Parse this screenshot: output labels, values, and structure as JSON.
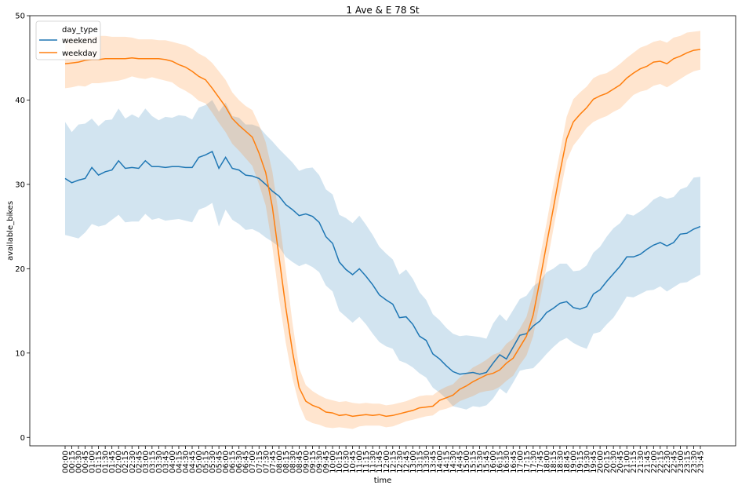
{
  "chart_data": {
    "type": "line",
    "title": "1 Ave & E 78 St",
    "xlabel": "time",
    "ylabel": "available_bikes",
    "ylim": [
      -1,
      50
    ],
    "yticks": [
      0,
      10,
      20,
      30,
      40,
      50
    ],
    "grid": false,
    "legend": {
      "placement": "top-left",
      "title": "day_type"
    },
    "x": [
      "00:00",
      "00:15",
      "00:30",
      "00:45",
      "01:00",
      "01:15",
      "01:30",
      "01:45",
      "02:00",
      "02:15",
      "02:30",
      "02:45",
      "03:00",
      "03:15",
      "03:30",
      "03:45",
      "04:00",
      "04:15",
      "04:30",
      "04:45",
      "05:00",
      "05:15",
      "05:30",
      "05:45",
      "06:00",
      "06:15",
      "06:30",
      "06:45",
      "07:00",
      "07:15",
      "07:30",
      "07:45",
      "08:00",
      "08:15",
      "08:30",
      "08:45",
      "09:00",
      "09:15",
      "09:30",
      "09:45",
      "10:00",
      "10:15",
      "10:30",
      "10:45",
      "11:00",
      "11:15",
      "11:30",
      "11:45",
      "12:00",
      "12:15",
      "12:30",
      "12:45",
      "13:00",
      "13:15",
      "13:30",
      "13:45",
      "14:00",
      "14:15",
      "14:30",
      "14:45",
      "15:00",
      "15:15",
      "15:30",
      "15:45",
      "16:00",
      "16:15",
      "16:30",
      "16:45",
      "17:00",
      "17:15",
      "17:30",
      "17:45",
      "18:00",
      "18:15",
      "18:30",
      "18:45",
      "19:00",
      "19:15",
      "19:30",
      "19:45",
      "20:00",
      "20:15",
      "20:30",
      "20:45",
      "21:00",
      "21:15",
      "21:30",
      "21:45",
      "22:00",
      "22:15",
      "22:30",
      "22:45",
      "23:00",
      "23:15",
      "23:30",
      "23:45"
    ],
    "series": [
      {
        "name": "weekend",
        "color": "#1f77b4",
        "band_color": "#1f77b4",
        "values": [
          30.7,
          30.2,
          30.5,
          30.7,
          32.0,
          31.1,
          31.5,
          31.7,
          32.8,
          31.9,
          32.0,
          31.9,
          32.8,
          32.1,
          32.1,
          32.0,
          32.1,
          32.1,
          32.0,
          32.0,
          33.2,
          33.5,
          33.9,
          31.9,
          33.2,
          31.9,
          31.7,
          31.1,
          31.0,
          30.7,
          30.0,
          29.2,
          28.6,
          27.6,
          27.0,
          26.3,
          26.5,
          26.2,
          25.5,
          23.8,
          23.0,
          20.8,
          19.9,
          19.3,
          20.0,
          19.1,
          18.1,
          16.9,
          16.3,
          15.8,
          14.2,
          14.3,
          13.4,
          12.0,
          11.5,
          9.9,
          9.3,
          8.5,
          7.8,
          7.5,
          7.6,
          7.7,
          7.5,
          7.7,
          8.8,
          9.8,
          9.3,
          10.7,
          12.1,
          12.3,
          13.2,
          13.8,
          14.8,
          15.3,
          15.9,
          16.1,
          15.4,
          15.2,
          15.5,
          17.0,
          17.5,
          18.5,
          19.4,
          20.3,
          21.4,
          21.4,
          21.7,
          22.3,
          22.8,
          23.1,
          22.7,
          23.1,
          24.1,
          24.2,
          24.7,
          25.0
        ],
        "lower": [
          24.0,
          23.8,
          23.6,
          24.3,
          25.3,
          25.0,
          25.2,
          25.8,
          26.4,
          25.5,
          25.6,
          25.6,
          26.5,
          25.8,
          26.0,
          25.7,
          25.8,
          25.9,
          25.7,
          25.5,
          27.0,
          27.3,
          27.8,
          25.0,
          27.0,
          25.8,
          25.3,
          24.6,
          24.7,
          24.3,
          23.7,
          23.2,
          22.6,
          21.4,
          20.8,
          20.3,
          20.6,
          20.2,
          19.6,
          18.0,
          17.3,
          15.0,
          14.3,
          13.6,
          14.3,
          13.4,
          12.3,
          11.3,
          10.8,
          10.5,
          9.1,
          8.8,
          8.3,
          7.6,
          7.1,
          5.9,
          5.3,
          4.6,
          3.7,
          3.5,
          3.3,
          3.7,
          3.6,
          3.8,
          4.6,
          5.8,
          5.2,
          6.5,
          7.9,
          8.1,
          8.2,
          9.0,
          9.9,
          10.7,
          11.4,
          11.8,
          11.2,
          10.8,
          10.5,
          12.3,
          12.5,
          13.4,
          14.2,
          15.4,
          16.7,
          16.6,
          17.0,
          17.4,
          17.5,
          17.9,
          17.3,
          17.8,
          18.3,
          18.4,
          18.9,
          19.3
        ],
        "upper": [
          37.4,
          36.2,
          37.1,
          37.2,
          37.8,
          36.9,
          37.6,
          37.7,
          39.0,
          37.8,
          38.3,
          37.9,
          39.0,
          38.1,
          37.6,
          38.0,
          37.9,
          38.2,
          38.1,
          37.7,
          39.1,
          39.4,
          40.0,
          38.6,
          39.7,
          38.1,
          37.9,
          37.1,
          37.1,
          36.8,
          35.9,
          35.1,
          34.2,
          33.4,
          32.6,
          31.6,
          31.9,
          32.0,
          31.1,
          29.4,
          28.8,
          26.4,
          26.0,
          25.4,
          26.3,
          25.2,
          24.0,
          22.6,
          21.8,
          21.1,
          19.3,
          19.9,
          18.8,
          17.2,
          16.3,
          14.6,
          13.9,
          13.0,
          12.3,
          12.0,
          12.1,
          12.0,
          11.9,
          11.7,
          13.5,
          14.6,
          13.8,
          15.1,
          16.4,
          16.8,
          17.9,
          18.5,
          19.6,
          20.0,
          20.6,
          20.6,
          19.7,
          19.8,
          20.4,
          21.9,
          22.6,
          23.8,
          24.8,
          25.4,
          26.5,
          26.3,
          26.8,
          27.4,
          28.2,
          28.6,
          28.3,
          28.5,
          29.4,
          29.7,
          30.8,
          30.9
        ]
      },
      {
        "name": "weekday",
        "color": "#ff7f0e",
        "band_color": "#ff7f0e",
        "values": [
          44.3,
          44.4,
          44.5,
          44.7,
          44.8,
          44.8,
          44.9,
          44.9,
          44.9,
          44.9,
          45.0,
          44.9,
          44.9,
          44.9,
          44.9,
          44.8,
          44.6,
          44.2,
          43.9,
          43.4,
          42.8,
          42.4,
          41.4,
          40.3,
          39.2,
          37.8,
          37.0,
          36.3,
          35.6,
          33.7,
          31.4,
          27.3,
          21.4,
          15.4,
          10.2,
          5.9,
          4.3,
          3.8,
          3.5,
          3.0,
          2.9,
          2.6,
          2.7,
          2.5,
          2.6,
          2.7,
          2.6,
          2.7,
          2.5,
          2.6,
          2.8,
          3.0,
          3.2,
          3.5,
          3.6,
          3.7,
          4.4,
          4.7,
          5.0,
          5.7,
          6.1,
          6.6,
          7.0,
          7.4,
          7.6,
          8.0,
          8.8,
          9.4,
          10.7,
          12.0,
          14.5,
          18.6,
          22.9,
          27.1,
          31.4,
          35.4,
          37.4,
          38.3,
          39.1,
          40.1,
          40.5,
          40.8,
          41.3,
          41.8,
          42.6,
          43.2,
          43.7,
          44.0,
          44.5,
          44.6,
          44.3,
          44.9,
          45.2,
          45.6,
          45.9,
          46.0
        ],
        "lower": [
          41.4,
          41.5,
          41.7,
          41.6,
          42.0,
          42.0,
          42.1,
          42.2,
          42.3,
          42.5,
          42.8,
          42.6,
          42.5,
          42.7,
          42.5,
          42.3,
          42.1,
          41.5,
          41.1,
          40.6,
          39.9,
          39.6,
          38.5,
          37.3,
          36.2,
          34.8,
          34.0,
          33.1,
          32.2,
          30.0,
          27.5,
          22.6,
          16.5,
          11.2,
          7.0,
          3.9,
          2.1,
          1.7,
          1.5,
          1.2,
          1.1,
          1.2,
          1.1,
          1.0,
          1.3,
          1.4,
          1.4,
          1.4,
          1.2,
          1.3,
          1.6,
          1.9,
          2.1,
          2.3,
          2.5,
          2.6,
          3.2,
          3.4,
          3.7,
          4.3,
          4.6,
          4.9,
          5.3,
          5.5,
          5.6,
          6.0,
          6.7,
          7.3,
          8.6,
          9.7,
          12.0,
          16.1,
          20.3,
          24.6,
          28.8,
          32.8,
          34.6,
          35.6,
          36.7,
          37.4,
          37.8,
          38.1,
          38.6,
          39.0,
          39.8,
          40.6,
          41.0,
          41.2,
          41.7,
          41.9,
          41.5,
          42.0,
          42.5,
          43.0,
          43.4,
          43.6
        ],
        "upper": [
          47.3,
          47.3,
          47.2,
          47.4,
          47.5,
          47.6,
          47.6,
          47.5,
          47.5,
          47.5,
          47.4,
          47.2,
          47.2,
          47.2,
          47.1,
          47.1,
          46.9,
          46.7,
          46.5,
          46.1,
          45.5,
          45.1,
          44.4,
          43.4,
          42.4,
          40.9,
          40.0,
          39.3,
          38.8,
          37.1,
          35.0,
          31.5,
          26.2,
          19.9,
          13.6,
          8.2,
          6.2,
          5.5,
          5.0,
          4.6,
          4.4,
          4.2,
          4.3,
          4.1,
          4.0,
          4.1,
          4.0,
          4.0,
          3.8,
          3.9,
          4.1,
          4.3,
          4.6,
          4.9,
          5.0,
          5.0,
          5.6,
          6.0,
          6.3,
          7.1,
          7.6,
          8.3,
          8.7,
          9.2,
          9.8,
          10.1,
          11.1,
          11.7,
          12.9,
          14.3,
          17.1,
          21.3,
          25.4,
          29.8,
          33.8,
          38.0,
          40.1,
          40.9,
          41.6,
          42.6,
          43.0,
          43.2,
          43.7,
          44.3,
          45.0,
          45.6,
          46.2,
          46.5,
          46.9,
          47.1,
          46.8,
          47.4,
          47.6,
          48.0,
          48.1,
          48.2
        ]
      }
    ]
  }
}
